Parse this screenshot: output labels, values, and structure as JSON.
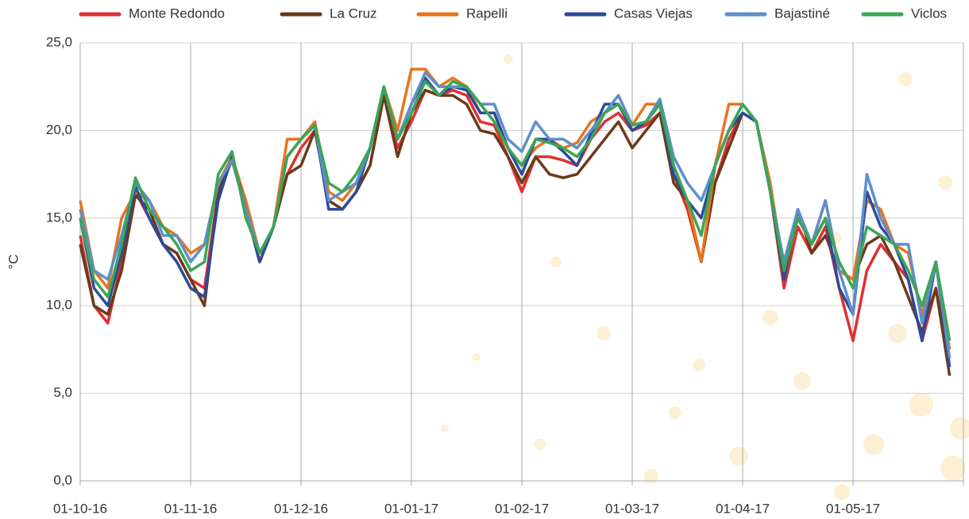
{
  "chart_data": {
    "type": "line",
    "y_label": "°C",
    "categories": [
      "01-10-16",
      null,
      null,
      null,
      null,
      null,
      null,
      null,
      "01-11-16",
      null,
      null,
      null,
      null,
      null,
      null,
      null,
      "01-12-16",
      null,
      null,
      null,
      null,
      null,
      null,
      null,
      "01-01-17",
      null,
      null,
      null,
      null,
      null,
      null,
      null,
      "01-02-17",
      null,
      null,
      null,
      null,
      null,
      null,
      null,
      "01-03-17",
      null,
      null,
      null,
      null,
      null,
      null,
      null,
      "01-04-17",
      null,
      null,
      null,
      null,
      null,
      null,
      null,
      "01-05-17",
      null,
      null,
      null,
      null,
      null,
      null,
      null
    ],
    "ylim": [
      0,
      25
    ],
    "yticks": [
      {
        "value": 0,
        "label": "0,0"
      },
      {
        "value": 5,
        "label": "5,0"
      },
      {
        "value": 10,
        "label": "10,0"
      },
      {
        "value": 15,
        "label": "15,0"
      },
      {
        "value": 20,
        "label": "20,0"
      },
      {
        "value": 25,
        "label": "25,0"
      }
    ],
    "grid": true,
    "legend": "top",
    "series": [
      {
        "name": "Monte Redondo",
        "color": "#e03030",
        "values": [
          14,
          10,
          9,
          12.5,
          16.5,
          15,
          13.5,
          13,
          11.5,
          11,
          16.5,
          18.3,
          15.5,
          12.5,
          14.5,
          17.5,
          19,
          20,
          16,
          15.5,
          16.5,
          18,
          22,
          19,
          20.5,
          22.3,
          22,
          22.3,
          22,
          20.5,
          20.3,
          18.5,
          16.5,
          18.5,
          18.5,
          18.3,
          18,
          19.5,
          20.5,
          21,
          20,
          20.3,
          21,
          17.5,
          15.5,
          12.5,
          17,
          19.5,
          21,
          20.5,
          16.5,
          11,
          14.5,
          13,
          14.5,
          11,
          8,
          12,
          13.5,
          12.5,
          11.5,
          8,
          11,
          6.5
        ]
      },
      {
        "name": "La Cruz",
        "color": "#6b3a1a",
        "values": [
          13.5,
          10,
          9.5,
          12,
          16.3,
          15.5,
          13.5,
          13,
          11.5,
          10,
          16.5,
          18.5,
          15.5,
          12.5,
          14.5,
          17.5,
          18,
          20,
          16,
          15.5,
          16.5,
          18,
          22,
          18.5,
          21,
          22.3,
          22,
          22,
          21.5,
          20,
          19.8,
          18.5,
          17,
          18.5,
          17.5,
          17.3,
          17.5,
          18.5,
          19.5,
          20.5,
          19,
          20,
          21,
          17,
          16,
          12.5,
          17,
          19,
          21,
          20.5,
          16.5,
          11.5,
          15.5,
          13,
          14,
          12,
          11.5,
          13.5,
          14,
          12.5,
          10.5,
          8.5,
          11,
          6
        ]
      },
      {
        "name": "Rapelli",
        "color": "#e8741e",
        "values": [
          16,
          12,
          11,
          15,
          16.5,
          16,
          14.5,
          14,
          13,
          13.5,
          17,
          18.5,
          16,
          13,
          14.5,
          19.5,
          19.5,
          20.5,
          16.5,
          16,
          17,
          19,
          22.5,
          20,
          23.5,
          23.5,
          22.5,
          23,
          22.5,
          21,
          21,
          19,
          18,
          19,
          19.5,
          19,
          19.3,
          20.5,
          21,
          21.5,
          20.3,
          21.5,
          21.5,
          18,
          16,
          12.5,
          18,
          21.5,
          21.5,
          20.5,
          17,
          12,
          15,
          13.5,
          16,
          12,
          11.5,
          16,
          15.5,
          13.5,
          13,
          9.5,
          12.5,
          7.5
        ]
      },
      {
        "name": "Casas Viejas",
        "color": "#2e4a99",
        "values": [
          15,
          11,
          10,
          13,
          16.8,
          15,
          13.5,
          12.5,
          11,
          10.5,
          16,
          18.5,
          15.5,
          12.5,
          14.5,
          18.5,
          19.5,
          20.3,
          15.5,
          15.5,
          16.5,
          19,
          22.5,
          19.5,
          21.5,
          23,
          22,
          22.5,
          22.3,
          21,
          21,
          19,
          17.5,
          19.5,
          19.5,
          18.8,
          18,
          19.8,
          21.5,
          21.5,
          20,
          20.5,
          21.5,
          17.5,
          16,
          15,
          18,
          20,
          21,
          20.5,
          16.5,
          11.5,
          15.5,
          13.5,
          15,
          11,
          9.5,
          16.5,
          14.5,
          13.5,
          11.5,
          8,
          12.5,
          6.5
        ]
      },
      {
        "name": "Bajastiné",
        "color": "#5e8fcc",
        "values": [
          15.5,
          12,
          11.5,
          14,
          17,
          16,
          14,
          14,
          12.5,
          13.5,
          17,
          18.3,
          15.5,
          13,
          14.5,
          18.5,
          19.5,
          20.3,
          16,
          16.5,
          17,
          19,
          22.5,
          19.5,
          21.5,
          23.3,
          22.5,
          22.5,
          22.5,
          21.5,
          21.5,
          19.5,
          18.8,
          20.5,
          19.5,
          19.5,
          19,
          20,
          21,
          22,
          20.3,
          20.5,
          21.8,
          18.5,
          17,
          16,
          18,
          20,
          21.5,
          20.5,
          16.5,
          12.5,
          15.5,
          13.5,
          16,
          12,
          9.5,
          17.5,
          15,
          13.5,
          13.5,
          9,
          12.5,
          7
        ]
      },
      {
        "name": "Viclos",
        "color": "#3aa655",
        "values": [
          15,
          11.5,
          10.5,
          13.5,
          17.3,
          15.5,
          14.5,
          13.5,
          12,
          12.5,
          17.5,
          18.8,
          15,
          13,
          14.5,
          18.5,
          19.5,
          20.3,
          17,
          16.5,
          17.5,
          19,
          22.5,
          19.5,
          21,
          22.8,
          22,
          22.8,
          22.5,
          21.5,
          20.5,
          19,
          18,
          19.5,
          19.3,
          19,
          18.5,
          19.5,
          21,
          21.5,
          20.3,
          20.5,
          21.5,
          18,
          16,
          14,
          18,
          20,
          21.5,
          20.5,
          16.5,
          12,
          15,
          13.5,
          15,
          12.5,
          11,
          14.5,
          14,
          13.5,
          12,
          10,
          12.5,
          8
        ]
      }
    ]
  }
}
